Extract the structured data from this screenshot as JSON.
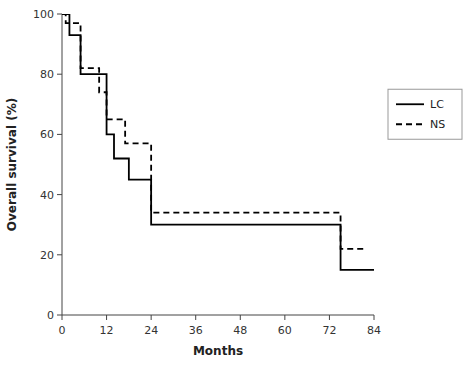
{
  "chart_data": {
    "type": "line",
    "x_label": "Months",
    "y_label": "Overall survival (%)",
    "series": [
      {
        "name": "LC",
        "color": "#000000",
        "line_style": "solid",
        "x": [
          0,
          0,
          2,
          2,
          5,
          5,
          12,
          12,
          14,
          14,
          18,
          18,
          24,
          24,
          72,
          72,
          75,
          75,
          84
        ],
        "values": [
          100,
          100,
          100,
          93,
          93,
          80,
          80,
          60,
          60,
          52,
          52,
          45,
          45,
          30,
          30,
          30,
          30,
          15,
          15
        ]
      },
      {
        "name": "NS",
        "color": "#000000",
        "line_style": "dashed",
        "x": [
          0,
          0,
          1,
          1,
          5,
          5,
          10,
          10,
          12,
          12,
          17,
          17,
          24,
          24,
          72,
          72,
          75,
          75,
          82,
          82
        ],
        "values": [
          100,
          100,
          100,
          97,
          97,
          82,
          82,
          74,
          74,
          65,
          65,
          57,
          57,
          34,
          34,
          34,
          34,
          22,
          22,
          22
        ]
      }
    ],
    "xlim": [
      0,
      84
    ],
    "ylim": [
      0,
      100
    ],
    "xticks": [
      0,
      12,
      24,
      36,
      48,
      60,
      72,
      84
    ],
    "yticks": [
      0,
      20,
      40,
      60,
      80,
      100
    ],
    "grid": false,
    "legend": "right"
  }
}
